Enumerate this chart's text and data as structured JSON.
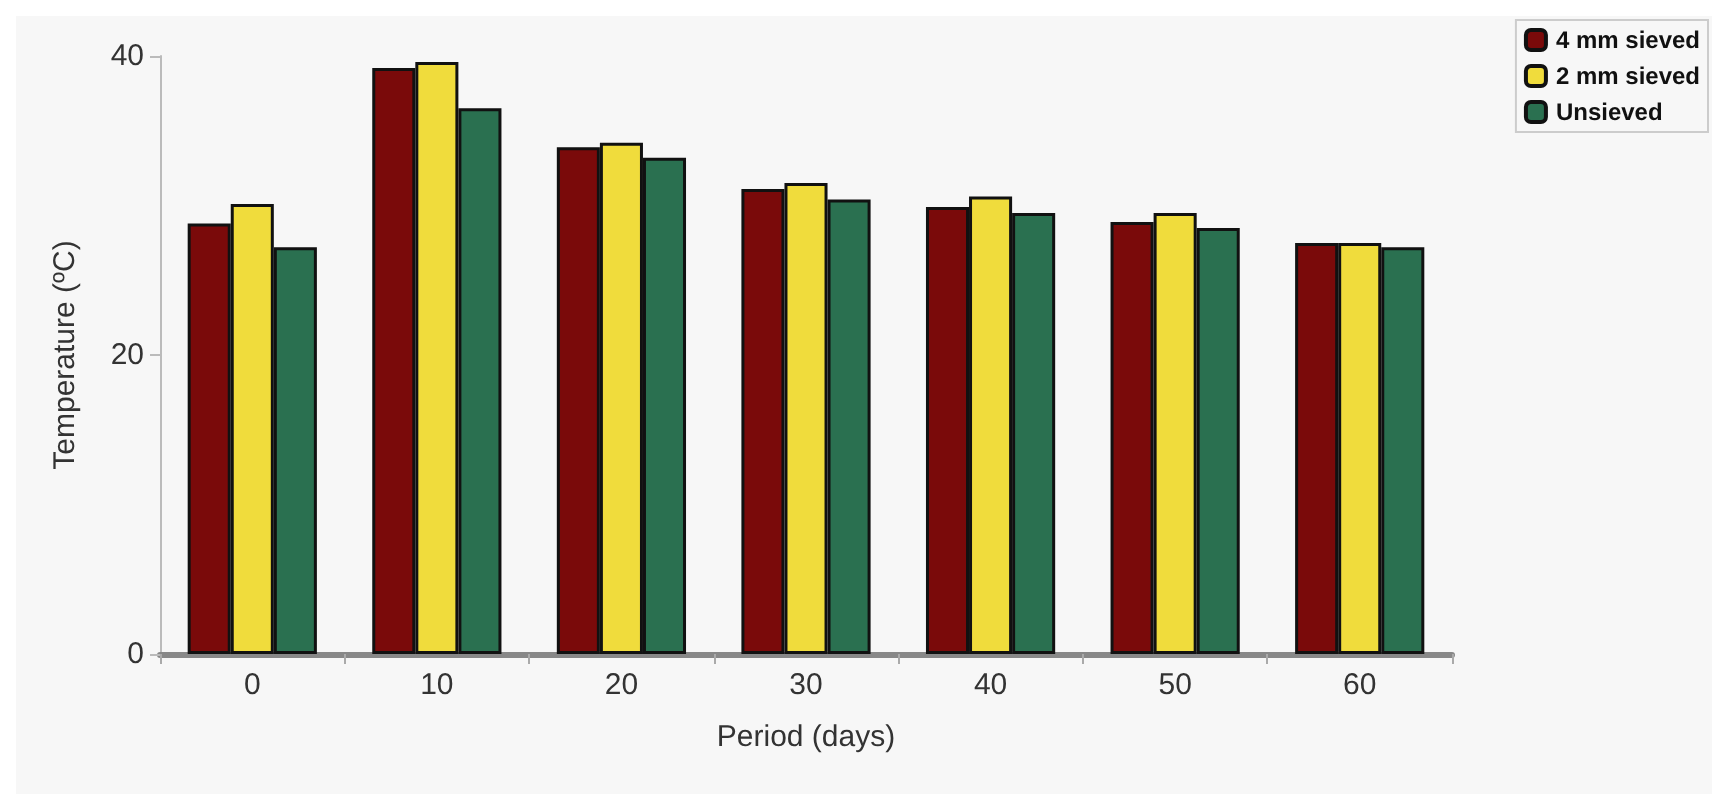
{
  "chart_data": {
    "type": "bar",
    "xlabel": "Period (days)",
    "ylabel": "Temperature (ºC)",
    "categories": [
      "0",
      "10",
      "20",
      "30",
      "40",
      "50",
      "60"
    ],
    "series": [
      {
        "name": "4 mm sieved",
        "color": "#7a0a0a",
        "values": [
          28.8,
          39.2,
          33.9,
          31.1,
          29.9,
          28.9,
          27.5
        ]
      },
      {
        "name": "2 mm sieved",
        "color": "#f0dc3c",
        "values": [
          30.1,
          39.6,
          34.2,
          31.5,
          30.6,
          29.5,
          27.5
        ]
      },
      {
        "name": "Unsieved",
        "color": "#2a7050",
        "values": [
          27.2,
          36.5,
          33.2,
          30.4,
          29.5,
          28.5,
          27.2
        ]
      }
    ],
    "ylim": [
      0,
      40
    ],
    "yticks": [
      0,
      20,
      40
    ],
    "grid": false,
    "legend": "top right"
  }
}
